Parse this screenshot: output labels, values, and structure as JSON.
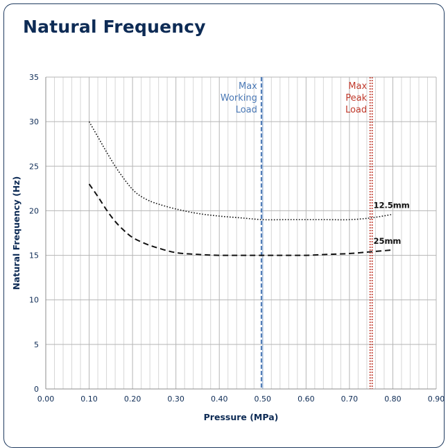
{
  "title": "Natural Frequency",
  "chart_data": {
    "type": "line",
    "xlabel": "Pressure (MPa)",
    "ylabel": "Natural Frequency (Hz)",
    "xlim": [
      0,
      0.9
    ],
    "ylim": [
      0,
      35
    ],
    "xticks": [
      "0.00",
      "0.10",
      "0.20",
      "0.30",
      "0.40",
      "0.50",
      "0.60",
      "0.70",
      "0.80",
      "0.90"
    ],
    "yticks": [
      "0",
      "5",
      "10",
      "15",
      "20",
      "25",
      "30",
      "35"
    ],
    "grid": true,
    "series": [
      {
        "name": "12.5mm",
        "style": "dotted",
        "x": [
          0.1,
          0.12,
          0.14,
          0.16,
          0.18,
          0.2,
          0.22,
          0.25,
          0.3,
          0.35,
          0.4,
          0.45,
          0.5,
          0.55,
          0.6,
          0.65,
          0.7,
          0.75,
          0.8
        ],
        "y": [
          30.0,
          28.3,
          26.6,
          25.0,
          23.6,
          22.4,
          21.6,
          20.9,
          20.2,
          19.7,
          19.4,
          19.2,
          19.0,
          19.0,
          19.0,
          19.0,
          19.0,
          19.2,
          19.6
        ]
      },
      {
        "name": "25mm",
        "style": "dashed",
        "x": [
          0.1,
          0.12,
          0.14,
          0.16,
          0.18,
          0.2,
          0.23,
          0.26,
          0.3,
          0.35,
          0.4,
          0.45,
          0.5,
          0.55,
          0.6,
          0.65,
          0.7,
          0.75,
          0.8
        ],
        "y": [
          23.0,
          21.6,
          20.1,
          18.8,
          17.8,
          17.0,
          16.3,
          15.8,
          15.3,
          15.1,
          15.0,
          15.0,
          15.0,
          15.0,
          15.0,
          15.1,
          15.2,
          15.4,
          15.6
        ]
      }
    ],
    "markers": [
      {
        "x": 0.497,
        "lines": [
          "Max",
          "Working",
          "Load"
        ],
        "color": "#4a78b5",
        "style": "dashed"
      },
      {
        "x": 0.75,
        "lines": [
          "Max",
          "Peak",
          "Load"
        ],
        "color": "#c0392b",
        "style": "dotted"
      }
    ]
  }
}
